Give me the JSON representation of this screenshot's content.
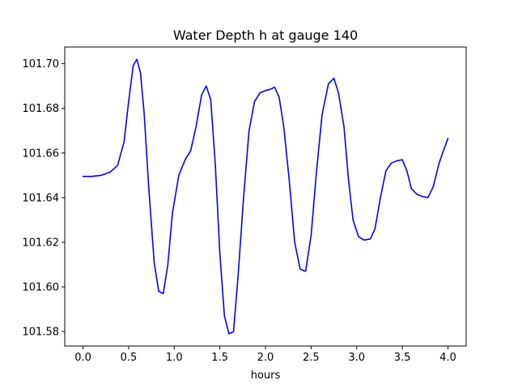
{
  "chart_data": {
    "type": "line",
    "title": "Water Depth h at gauge 140",
    "xlabel": "hours",
    "ylabel": "",
    "xlim": [
      -0.2,
      4.2
    ],
    "ylim": [
      101.5735,
      101.7075
    ],
    "x_ticks": [
      {
        "value": 0.0,
        "label": "0.0"
      },
      {
        "value": 0.5,
        "label": "0.5"
      },
      {
        "value": 1.0,
        "label": "1.0"
      },
      {
        "value": 1.5,
        "label": "1.5"
      },
      {
        "value": 2.0,
        "label": "2.0"
      },
      {
        "value": 2.5,
        "label": "2.5"
      },
      {
        "value": 3.0,
        "label": "3.0"
      },
      {
        "value": 3.5,
        "label": "3.5"
      },
      {
        "value": 4.0,
        "label": "4.0"
      }
    ],
    "y_ticks": [
      {
        "value": 101.58,
        "label": "101.58"
      },
      {
        "value": 101.6,
        "label": "101.60"
      },
      {
        "value": 101.62,
        "label": "101.62"
      },
      {
        "value": 101.64,
        "label": "101.64"
      },
      {
        "value": 101.66,
        "label": "101.66"
      },
      {
        "value": 101.68,
        "label": "101.68"
      },
      {
        "value": 101.7,
        "label": "101.70"
      }
    ],
    "grid": false,
    "series": [
      {
        "color": "#0000ff",
        "points": [
          [
            0.0,
            101.6495
          ],
          [
            0.1,
            101.6495
          ],
          [
            0.2,
            101.65
          ],
          [
            0.3,
            101.6515
          ],
          [
            0.38,
            101.6545
          ],
          [
            0.45,
            101.665
          ],
          [
            0.5,
            101.683
          ],
          [
            0.55,
            101.699
          ],
          [
            0.59,
            101.702
          ],
          [
            0.63,
            101.696
          ],
          [
            0.67,
            101.678
          ],
          [
            0.72,
            101.645
          ],
          [
            0.78,
            101.611
          ],
          [
            0.83,
            101.598
          ],
          [
            0.88,
            101.597
          ],
          [
            0.93,
            101.61
          ],
          [
            0.98,
            101.633
          ],
          [
            1.05,
            101.65
          ],
          [
            1.12,
            101.657
          ],
          [
            1.18,
            101.661
          ],
          [
            1.24,
            101.672
          ],
          [
            1.3,
            101.686
          ],
          [
            1.35,
            101.69
          ],
          [
            1.4,
            101.684
          ],
          [
            1.45,
            101.655
          ],
          [
            1.5,
            101.615
          ],
          [
            1.55,
            101.587
          ],
          [
            1.6,
            101.579
          ],
          [
            1.65,
            101.58
          ],
          [
            1.7,
            101.605
          ],
          [
            1.76,
            101.64
          ],
          [
            1.82,
            101.67
          ],
          [
            1.88,
            101.683
          ],
          [
            1.94,
            101.687
          ],
          [
            2.0,
            101.688
          ],
          [
            2.05,
            101.6885
          ],
          [
            2.1,
            101.6895
          ],
          [
            2.15,
            101.685
          ],
          [
            2.2,
            101.672
          ],
          [
            2.26,
            101.648
          ],
          [
            2.32,
            101.62
          ],
          [
            2.38,
            101.608
          ],
          [
            2.44,
            101.607
          ],
          [
            2.5,
            101.623
          ],
          [
            2.56,
            101.652
          ],
          [
            2.62,
            101.677
          ],
          [
            2.69,
            101.691
          ],
          [
            2.75,
            101.6935
          ],
          [
            2.8,
            101.687
          ],
          [
            2.86,
            101.672
          ],
          [
            2.91,
            101.648
          ],
          [
            2.96,
            101.63
          ],
          [
            3.02,
            101.6225
          ],
          [
            3.08,
            101.621
          ],
          [
            3.15,
            101.6215
          ],
          [
            3.2,
            101.626
          ],
          [
            3.26,
            101.64
          ],
          [
            3.32,
            101.652
          ],
          [
            3.38,
            101.6555
          ],
          [
            3.44,
            101.6565
          ],
          [
            3.5,
            101.657
          ],
          [
            3.55,
            101.652
          ],
          [
            3.6,
            101.644
          ],
          [
            3.66,
            101.6415
          ],
          [
            3.72,
            101.6405
          ],
          [
            3.78,
            101.64
          ],
          [
            3.84,
            101.645
          ],
          [
            3.9,
            101.655
          ],
          [
            3.95,
            101.661
          ],
          [
            4.0,
            101.6665
          ]
        ]
      }
    ]
  }
}
